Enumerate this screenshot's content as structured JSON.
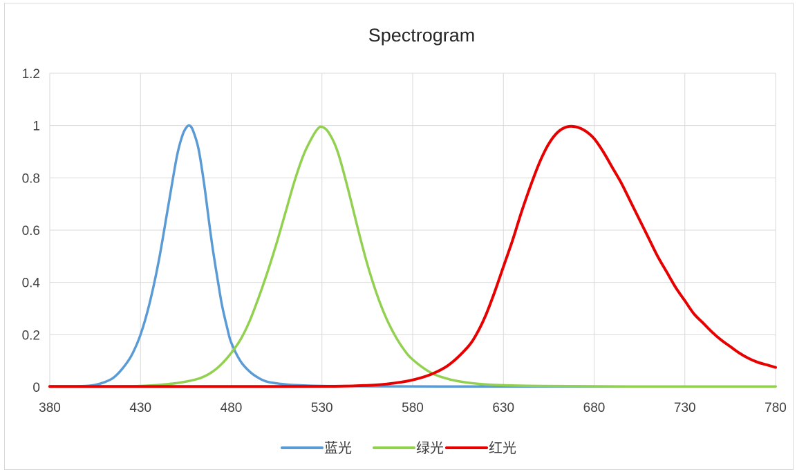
{
  "chart_data": {
    "type": "line",
    "title": "Spectrogram",
    "xlabel": "",
    "ylabel": "",
    "xlim": [
      380,
      780
    ],
    "ylim": [
      0,
      1.2
    ],
    "x_ticks": [
      380,
      430,
      480,
      530,
      580,
      630,
      680,
      730,
      780
    ],
    "y_ticks": [
      0,
      0.2,
      0.4,
      0.6,
      0.8,
      1,
      1.2
    ],
    "grid": true,
    "legend_position": "bottom",
    "series": [
      {
        "name": "蓝光",
        "color": "#5b9bd5",
        "points": [
          [
            380,
            0.003
          ],
          [
            390,
            0.003
          ],
          [
            400,
            0.004
          ],
          [
            405,
            0.008
          ],
          [
            410,
            0.018
          ],
          [
            415,
            0.035
          ],
          [
            420,
            0.07
          ],
          [
            425,
            0.12
          ],
          [
            430,
            0.2
          ],
          [
            435,
            0.32
          ],
          [
            440,
            0.48
          ],
          [
            445,
            0.68
          ],
          [
            450,
            0.88
          ],
          [
            453,
            0.96
          ],
          [
            455,
            0.99
          ],
          [
            457,
            1.0
          ],
          [
            459,
            0.98
          ],
          [
            462,
            0.91
          ],
          [
            465,
            0.78
          ],
          [
            468,
            0.62
          ],
          [
            470,
            0.52
          ],
          [
            473,
            0.39
          ],
          [
            475,
            0.31
          ],
          [
            478,
            0.22
          ],
          [
            480,
            0.17
          ],
          [
            485,
            0.1
          ],
          [
            490,
            0.06
          ],
          [
            495,
            0.035
          ],
          [
            500,
            0.02
          ],
          [
            510,
            0.01
          ],
          [
            520,
            0.006
          ],
          [
            530,
            0.004
          ],
          [
            550,
            0.003
          ],
          [
            600,
            0.002
          ],
          [
            780,
            0.002
          ]
        ]
      },
      {
        "name": "绿光",
        "color": "#92d050",
        "points": [
          [
            380,
            0.002
          ],
          [
            420,
            0.003
          ],
          [
            430,
            0.004
          ],
          [
            440,
            0.008
          ],
          [
            450,
            0.015
          ],
          [
            460,
            0.028
          ],
          [
            465,
            0.04
          ],
          [
            470,
            0.06
          ],
          [
            475,
            0.09
          ],
          [
            480,
            0.13
          ],
          [
            485,
            0.18
          ],
          [
            490,
            0.25
          ],
          [
            495,
            0.34
          ],
          [
            500,
            0.44
          ],
          [
            505,
            0.55
          ],
          [
            510,
            0.67
          ],
          [
            515,
            0.79
          ],
          [
            520,
            0.89
          ],
          [
            525,
            0.96
          ],
          [
            528,
            0.99
          ],
          [
            530,
            0.995
          ],
          [
            533,
            0.98
          ],
          [
            537,
            0.93
          ],
          [
            540,
            0.87
          ],
          [
            545,
            0.74
          ],
          [
            550,
            0.6
          ],
          [
            555,
            0.47
          ],
          [
            560,
            0.36
          ],
          [
            565,
            0.27
          ],
          [
            570,
            0.2
          ],
          [
            575,
            0.145
          ],
          [
            580,
            0.105
          ],
          [
            590,
            0.055
          ],
          [
            600,
            0.03
          ],
          [
            610,
            0.017
          ],
          [
            620,
            0.01
          ],
          [
            630,
            0.007
          ],
          [
            650,
            0.004
          ],
          [
            700,
            0.002
          ],
          [
            780,
            0.002
          ]
        ]
      },
      {
        "name": "红光",
        "color": "#e60000",
        "points": [
          [
            380,
            0.002
          ],
          [
            500,
            0.002
          ],
          [
            540,
            0.003
          ],
          [
            550,
            0.005
          ],
          [
            560,
            0.008
          ],
          [
            570,
            0.015
          ],
          [
            580,
            0.027
          ],
          [
            590,
            0.048
          ],
          [
            600,
            0.085
          ],
          [
            610,
            0.15
          ],
          [
            615,
            0.2
          ],
          [
            620,
            0.27
          ],
          [
            625,
            0.36
          ],
          [
            630,
            0.46
          ],
          [
            635,
            0.56
          ],
          [
            640,
            0.67
          ],
          [
            645,
            0.77
          ],
          [
            650,
            0.86
          ],
          [
            655,
            0.93
          ],
          [
            660,
            0.975
          ],
          [
            665,
            0.995
          ],
          [
            670,
            0.995
          ],
          [
            675,
            0.98
          ],
          [
            680,
            0.95
          ],
          [
            685,
            0.9
          ],
          [
            690,
            0.84
          ],
          [
            695,
            0.78
          ],
          [
            700,
            0.71
          ],
          [
            705,
            0.64
          ],
          [
            710,
            0.57
          ],
          [
            715,
            0.5
          ],
          [
            720,
            0.44
          ],
          [
            725,
            0.38
          ],
          [
            730,
            0.33
          ],
          [
            735,
            0.28
          ],
          [
            740,
            0.245
          ],
          [
            745,
            0.21
          ],
          [
            750,
            0.18
          ],
          [
            755,
            0.155
          ],
          [
            760,
            0.13
          ],
          [
            765,
            0.11
          ],
          [
            770,
            0.095
          ],
          [
            775,
            0.085
          ],
          [
            780,
            0.075
          ]
        ]
      }
    ]
  }
}
